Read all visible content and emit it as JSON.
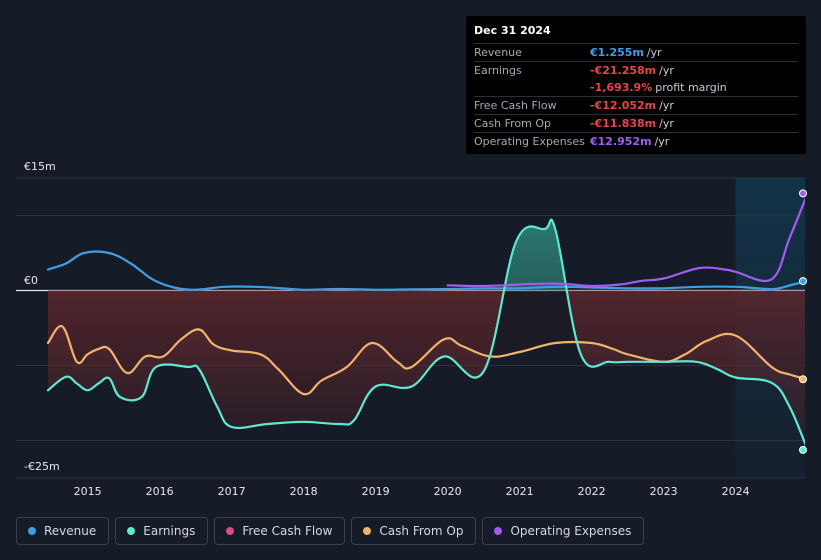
{
  "tooltip": {
    "date": "Dec 31 2024",
    "rows": [
      {
        "label": "Revenue",
        "value": "€1.255m",
        "unit": "/yr",
        "color": "#3d9fe5"
      },
      {
        "label": "Earnings",
        "value": "-€21.258m",
        "unit": "/yr",
        "color": "#e64646"
      },
      {
        "label": "",
        "value": "-1,693.9%",
        "unit": "profit margin",
        "color": "#e64646"
      },
      {
        "label": "Free Cash Flow",
        "value": "-€12.052m",
        "unit": "/yr",
        "color": "#e64646"
      },
      {
        "label": "Cash From Op",
        "value": "-€11.838m",
        "unit": "/yr",
        "color": "#e64646"
      },
      {
        "label": "Operating Expenses",
        "value": "€12.952m",
        "unit": "/yr",
        "color": "#a35bf2"
      }
    ]
  },
  "legend": [
    {
      "label": "Revenue",
      "color": "#3d9fe5"
    },
    {
      "label": "Earnings",
      "color": "#5ee8d0"
    },
    {
      "label": "Free Cash Flow",
      "color": "#d54e86"
    },
    {
      "label": "Cash From Op",
      "color": "#f0b36a"
    },
    {
      "label": "Operating Expenses",
      "color": "#a35bf2"
    }
  ],
  "chart_data": {
    "type": "line",
    "y_top_label": "€15m",
    "y_zero_label": "€0",
    "y_bottom_label": "-€25m",
    "ylim": [
      -25,
      15
    ],
    "xlim": [
      2014.0,
      2025.0
    ],
    "x_ticks": [
      2015,
      2016,
      2017,
      2018,
      2019,
      2020,
      2021,
      2022,
      2023,
      2024
    ],
    "x_tick_labels": [
      "2015",
      "2016",
      "2017",
      "2018",
      "2019",
      "2020",
      "2021",
      "2022",
      "2023",
      "2024"
    ],
    "gridlines": [
      15,
      10,
      0,
      -10,
      -20,
      -25
    ],
    "forecast_start": 2024.0,
    "series": [
      {
        "name": "Revenue",
        "color": "#3d9fe5",
        "x": [
          2014.45,
          2014.7,
          2014.95,
          2015.3,
          2015.6,
          2015.9,
          2016.2,
          2016.5,
          2016.9,
          2017.3,
          2017.7,
          2018.0,
          2018.5,
          2019.0,
          2019.5,
          2020.0,
          2020.5,
          2021.0,
          2021.5,
          2022.0,
          2022.5,
          2023.0,
          2023.5,
          2024.0,
          2024.3,
          2024.55,
          2024.8,
          2025.0
        ],
        "values": [
          2.8,
          3.6,
          5.0,
          5.0,
          3.6,
          1.5,
          0.4,
          0.1,
          0.5,
          0.5,
          0.3,
          0.1,
          0.2,
          0.1,
          0.15,
          0.2,
          0.3,
          0.3,
          0.5,
          0.4,
          0.3,
          0.3,
          0.5,
          0.5,
          0.3,
          0.2,
          0.8,
          1.255
        ]
      },
      {
        "name": "Earnings",
        "color": "#5ee8d0",
        "x": [
          2014.45,
          2014.7,
          2014.85,
          2015.0,
          2015.15,
          2015.3,
          2015.45,
          2015.75,
          2015.95,
          2016.4,
          2016.55,
          2016.8,
          2017.0,
          2017.5,
          2018.0,
          2018.5,
          2018.7,
          2019.0,
          2019.5,
          2019.95,
          2020.5,
          2020.95,
          2021.35,
          2021.5,
          2021.85,
          2022.25,
          2022.5,
          2023.0,
          2023.45,
          2023.75,
          2024.0,
          2024.5,
          2024.75,
          2025.0
        ],
        "values": [
          -13.3,
          -11.5,
          -12.4,
          -13.3,
          -12.4,
          -11.7,
          -14.2,
          -14.2,
          -10.2,
          -10.2,
          -10.5,
          -15.5,
          -18.2,
          -17.8,
          -17.5,
          -17.8,
          -17.3,
          -12.8,
          -12.8,
          -8.8,
          -10.8,
          6.5,
          8.2,
          8.0,
          -8.5,
          -9.5,
          -9.5,
          -9.5,
          -9.5,
          -10.5,
          -11.6,
          -12.3,
          -15.5,
          -21.258
        ]
      },
      {
        "name": "Free Cash Flow",
        "color": "#d54e86",
        "x": [],
        "values": []
      },
      {
        "name": "Cash From Op",
        "color": "#f0b36a",
        "x": [
          2014.45,
          2014.65,
          2014.85,
          2015.0,
          2015.15,
          2015.3,
          2015.55,
          2015.8,
          2016.05,
          2016.3,
          2016.55,
          2016.75,
          2017.0,
          2017.4,
          2017.65,
          2018.0,
          2018.25,
          2018.6,
          2018.95,
          2019.3,
          2019.5,
          2019.95,
          2020.2,
          2020.6,
          2021.0,
          2021.5,
          2022.0,
          2022.3,
          2022.5,
          2023.0,
          2023.3,
          2023.6,
          2024.0,
          2024.5,
          2024.75,
          2025.0
        ],
        "values": [
          -7.0,
          -4.8,
          -9.5,
          -8.5,
          -7.8,
          -7.8,
          -11.0,
          -8.8,
          -8.8,
          -6.5,
          -5.2,
          -7.2,
          -8.0,
          -8.5,
          -10.5,
          -13.8,
          -12.0,
          -10.2,
          -7.0,
          -9.5,
          -10.2,
          -6.5,
          -7.4,
          -8.8,
          -8.2,
          -7.0,
          -7.0,
          -7.8,
          -8.5,
          -9.5,
          -8.5,
          -6.7,
          -6.0,
          -10.2,
          -11.2,
          -11.838
        ]
      },
      {
        "name": "Operating Expenses",
        "color": "#a35bf2",
        "x": [
          2020.0,
          2020.4,
          2020.8,
          2021.2,
          2021.6,
          2022.0,
          2022.4,
          2022.7,
          2023.0,
          2023.5,
          2023.85,
          2024.0,
          2024.5,
          2024.75,
          2025.0
        ],
        "values": [
          0.7,
          0.6,
          0.7,
          0.9,
          0.9,
          0.6,
          0.8,
          1.3,
          1.6,
          3.0,
          2.8,
          2.5,
          1.5,
          7.0,
          12.952
        ]
      }
    ]
  }
}
